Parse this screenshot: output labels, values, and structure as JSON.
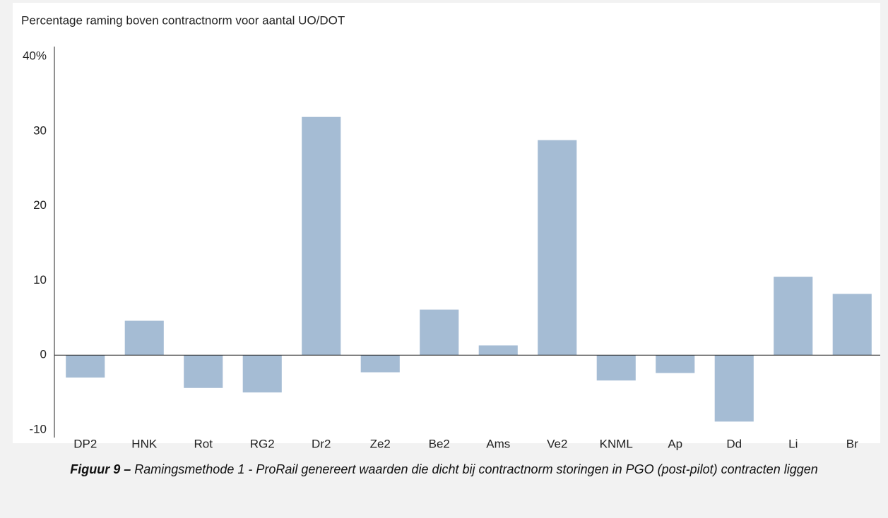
{
  "chart_data": {
    "type": "bar",
    "title": "Percentage raming boven contractnorm voor aantal UO/DOT",
    "categories": [
      "DP2",
      "HNK",
      "Rot",
      "RG2",
      "Dr2",
      "Ze2",
      "Be2",
      "Ams",
      "Ve2",
      "KNML",
      "Ap",
      "Dd",
      "Li",
      "Br"
    ],
    "values": [
      -3.0,
      4.6,
      -4.4,
      -5.0,
      31.9,
      -2.3,
      6.1,
      1.3,
      28.8,
      -3.4,
      -2.4,
      -8.9,
      10.5,
      8.2
    ],
    "color": "#a5bcd4",
    "ylim": [
      -10,
      40
    ],
    "yticks": [
      {
        "value": 40,
        "label": "40%"
      },
      30,
      20,
      10,
      0,
      -10
    ],
    "grid": false,
    "caption": {
      "label": "Figuur 9 –",
      "text": "Ramingsmethode 1 - ProRail genereert waarden die dicht bij contractnorm storingen in PGO (post-pilot) contracten liggen"
    }
  }
}
